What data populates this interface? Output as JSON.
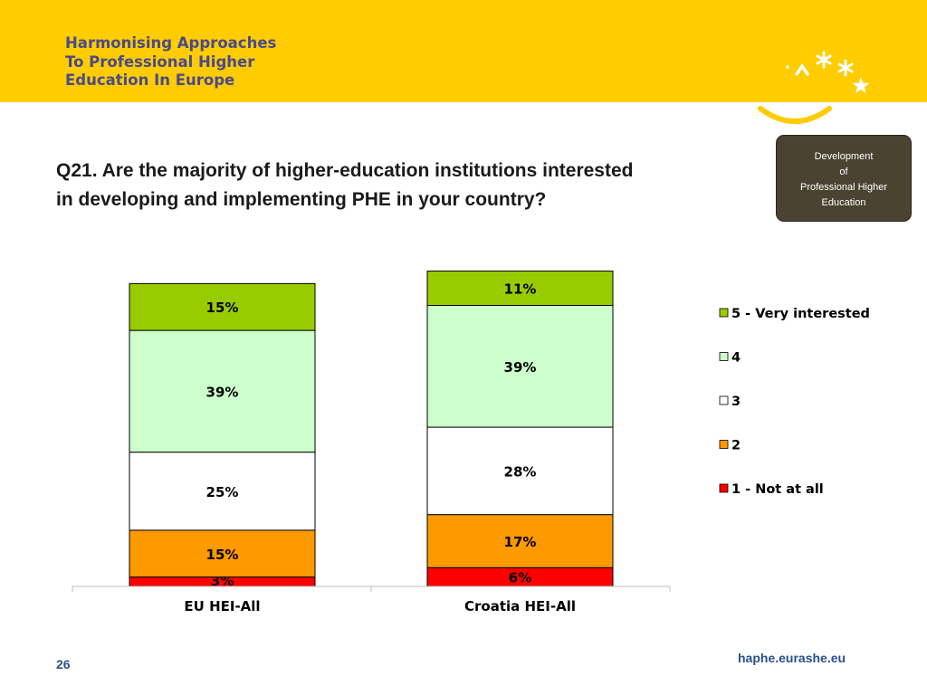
{
  "header": {
    "logo_lines": [
      "Harmonising Approaches",
      "To Professional Higher",
      "Education In Europe"
    ],
    "colors": {
      "band": "#ffcc00",
      "logo_text": "#4a4a8a"
    }
  },
  "badge": {
    "lines": [
      "Development",
      "of",
      "Professional Higher",
      "Education"
    ]
  },
  "question": {
    "lines": [
      "Q21. Are the majority of higher-education institutions interested",
      "in developing and implementing PHE in your country?"
    ]
  },
  "chart_data": {
    "type": "bar",
    "stacked": true,
    "categories": [
      "EU HEI-All",
      "Croatia HEI-All"
    ],
    "series": [
      {
        "name": "1 - Not at all",
        "color": "#ff0000",
        "values": [
          3,
          6
        ],
        "labels": [
          "3%",
          "6%"
        ]
      },
      {
        "name": "2",
        "color": "#ff9900",
        "values": [
          15,
          17
        ],
        "labels": [
          "15%",
          "17%"
        ]
      },
      {
        "name": "3",
        "color": "#ffffff",
        "values": [
          25,
          28
        ],
        "labels": [
          "25%",
          "28%"
        ]
      },
      {
        "name": "4",
        "color": "#ccffcc",
        "values": [
          39,
          39
        ],
        "labels": [
          "39%",
          "39%"
        ]
      },
      {
        "name": "5 - Very interested",
        "color": "#99cc00",
        "values": [
          15,
          11
        ],
        "labels": [
          "15%",
          "11%"
        ]
      }
    ],
    "ylim": [
      0,
      100
    ],
    "grid": false,
    "legend_position": "right"
  },
  "footer": {
    "page_number": "26",
    "site": "haphe.eurashe.eu"
  }
}
